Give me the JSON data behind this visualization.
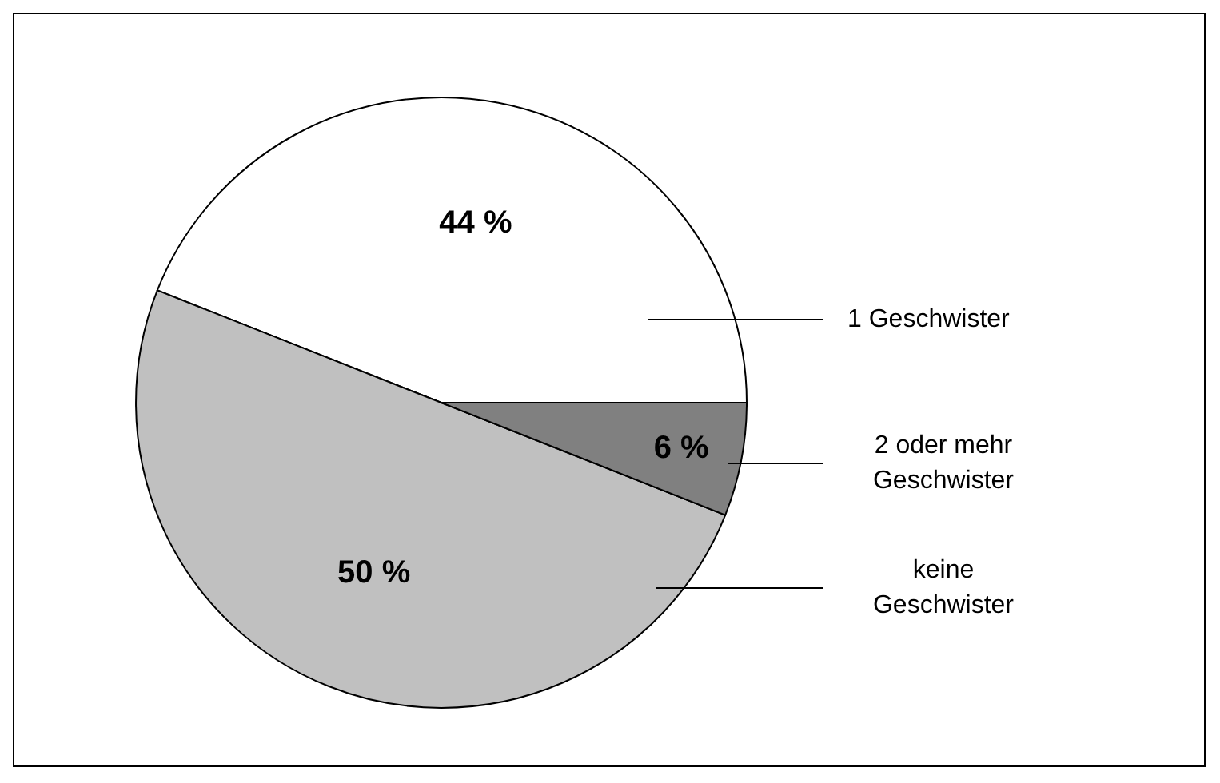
{
  "chart_data": {
    "type": "pie",
    "categories": [
      "1 Geschwister",
      "keine Geschwister",
      "2 oder mehr Geschwister"
    ],
    "values": [
      44,
      50,
      6
    ],
    "colors": [
      "#ffffff",
      "#c0c0c0",
      "#808080"
    ],
    "value_labels": [
      "44 %",
      "50 %",
      "6 %"
    ]
  }
}
